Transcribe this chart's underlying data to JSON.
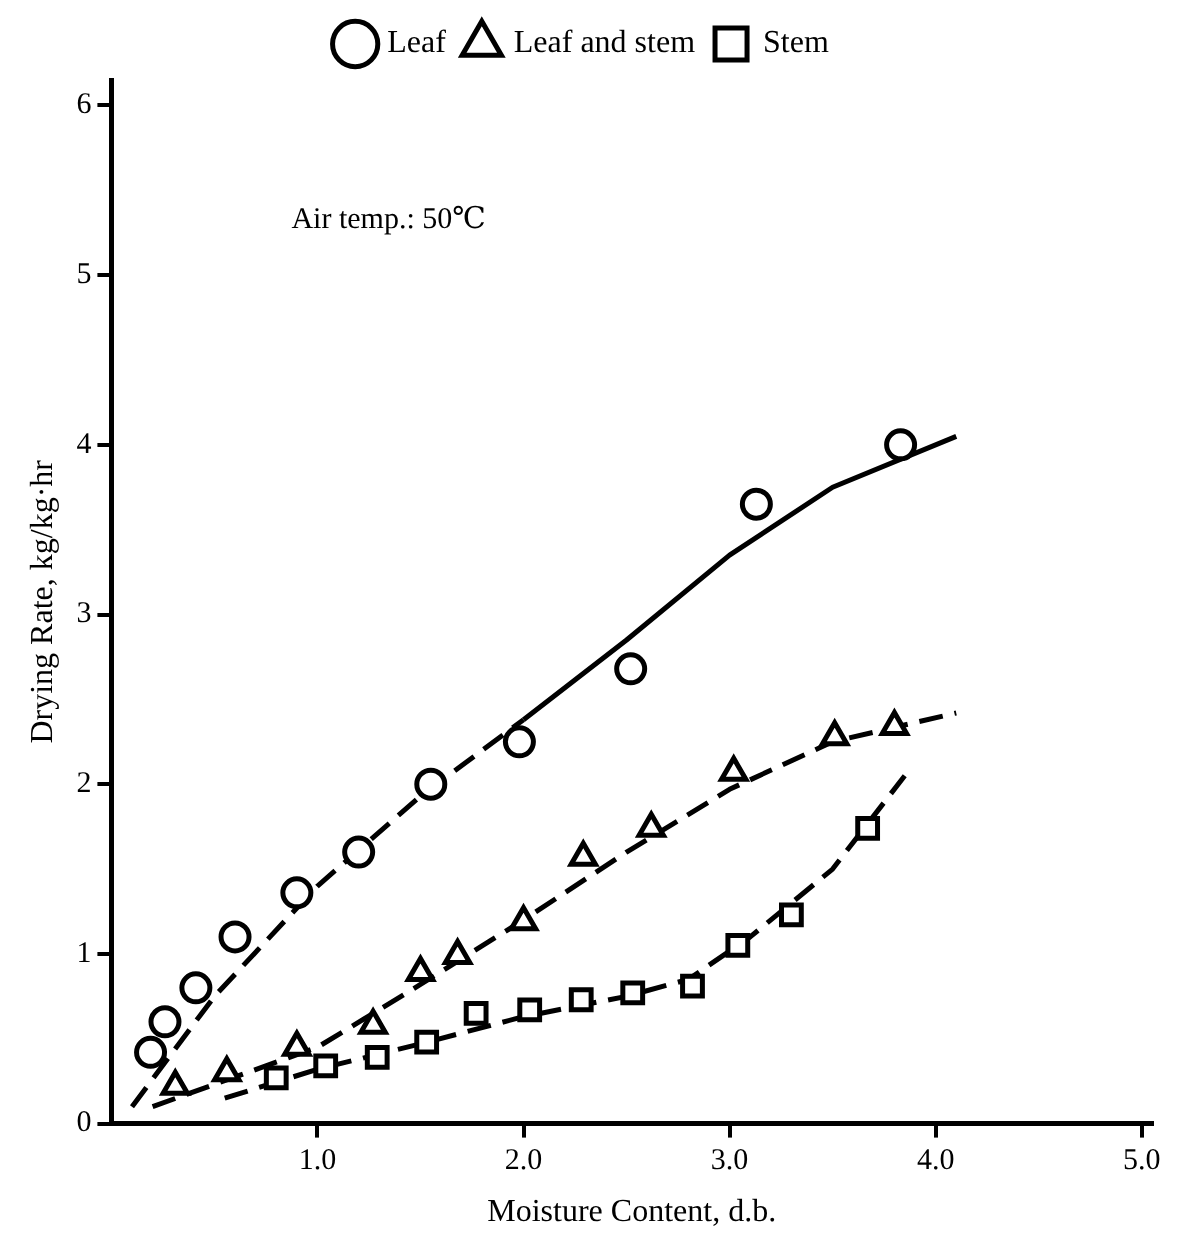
{
  "chart_data": {
    "type": "scatter",
    "xlabel": "Moisture Content, d.b.",
    "ylabel": "Drying Rate, kg/kg·hr",
    "annotations": [
      "Air temp.: 50℃"
    ],
    "xlim": [
      0,
      5.05
    ],
    "xticks": [
      {
        "value": 1,
        "label": "1.0"
      },
      {
        "value": 2,
        "label": "2.0"
      },
      {
        "value": 3,
        "label": "3.0"
      },
      {
        "value": 4,
        "label": "4.0"
      },
      {
        "value": 5,
        "label": "5.0"
      }
    ],
    "ylim": [
      0,
      6.15
    ],
    "yticks": [
      0,
      1,
      2,
      3,
      4,
      5,
      6
    ],
    "grid": false,
    "legend": "top",
    "series": [
      {
        "name": "Leaf",
        "color": "#000000",
        "marker": "circle",
        "x": [
          0.19,
          0.26,
          0.41,
          0.6,
          0.9,
          1.2,
          1.55,
          1.98,
          2.52,
          3.13,
          3.83
        ],
        "values": [
          0.42,
          0.6,
          0.8,
          1.1,
          1.36,
          1.6,
          2.0,
          2.25,
          2.68,
          3.65,
          4.0
        ]
      },
      {
        "name": "Leaf and stem",
        "color": "#000000",
        "marker": "triangle",
        "x": [
          0.31,
          0.56,
          0.9,
          1.27,
          1.5,
          1.68,
          2.0,
          2.29,
          2.62,
          3.02,
          3.51,
          3.8
        ],
        "values": [
          0.22,
          0.3,
          0.45,
          0.58,
          0.89,
          0.99,
          1.19,
          1.57,
          1.74,
          2.07,
          2.28,
          2.34
        ]
      },
      {
        "name": "Stem",
        "color": "#000000",
        "marker": "square",
        "x": [
          0.8,
          1.04,
          1.29,
          1.53,
          1.77,
          2.03,
          2.28,
          2.53,
          2.82,
          3.04,
          3.3,
          3.67
        ],
        "values": [
          0.27,
          0.34,
          0.39,
          0.48,
          0.65,
          0.67,
          0.73,
          0.77,
          0.81,
          1.05,
          1.23,
          1.74
        ]
      },
      {
        "type": "line",
        "color": "#000000",
        "marker": "none",
        "line_style": "dashed",
        "x": [
          0.1,
          0.5,
          1.0,
          1.5,
          2.0
        ],
        "values": [
          0.1,
          0.75,
          1.4,
          1.93,
          2.38
        ]
      },
      {
        "type": "line",
        "color": "#000000",
        "marker": "none",
        "line_style": "solid",
        "x": [
          2.0,
          2.5,
          3.0,
          3.5,
          4.1
        ],
        "values": [
          2.38,
          2.85,
          3.35,
          3.75,
          4.05
        ]
      },
      {
        "type": "line",
        "color": "#000000",
        "marker": "none",
        "line_style": "dashed",
        "x": [
          0.2,
          1.0,
          1.5,
          2.0,
          2.5,
          3.0,
          3.5,
          4.1
        ],
        "values": [
          0.1,
          0.45,
          0.82,
          1.2,
          1.6,
          1.97,
          2.25,
          2.42
        ]
      },
      {
        "type": "line",
        "color": "#000000",
        "marker": "none",
        "line_style": "dashed",
        "x": [
          0.55,
          1.0,
          1.5,
          2.0,
          2.5,
          2.8,
          3.1,
          3.5,
          3.85
        ],
        "values": [
          0.15,
          0.32,
          0.47,
          0.63,
          0.75,
          0.85,
          1.1,
          1.5,
          2.05
        ]
      }
    ]
  }
}
